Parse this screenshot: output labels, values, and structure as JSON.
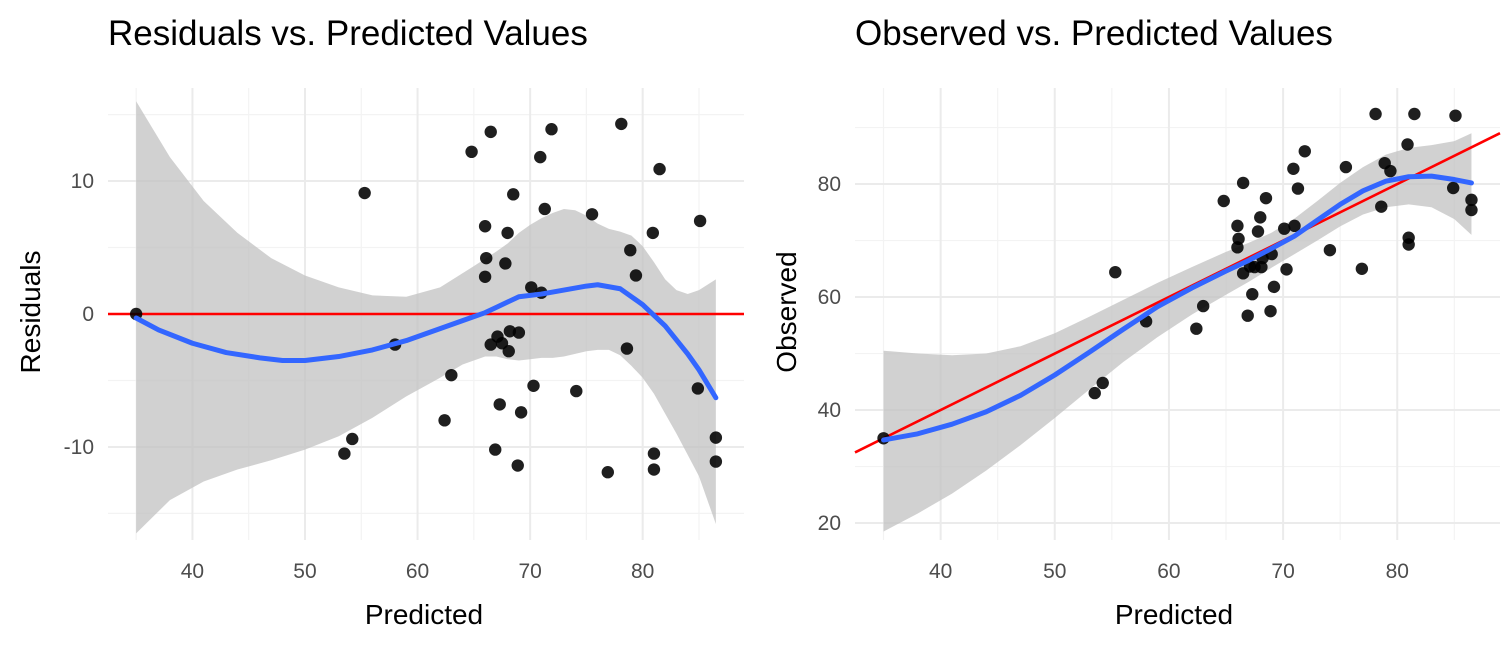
{
  "colors": {
    "points": "#000000",
    "smooth": "#3366FF",
    "band": "#bfbfbf",
    "reference": "#ff0000",
    "grid": "#ebebeb"
  },
  "chart_data": [
    {
      "type": "scatter",
      "title": "Residuals vs. Predicted Values",
      "xlabel": "Predicted",
      "ylabel": "Residuals",
      "xlim": [
        32.5,
        89
      ],
      "ylim": [
        -17,
        17
      ],
      "x_ticks": [
        40,
        50,
        60,
        70,
        80
      ],
      "y_ticks": [
        -10,
        0,
        10
      ],
      "x_tick_labels": [
        "40",
        "50",
        "60",
        "70",
        "80"
      ],
      "y_tick_labels": [
        "-10",
        "0",
        "10"
      ],
      "grid": true,
      "reference_line": {
        "type": "horizontal",
        "y": 0,
        "color": "#ff0000"
      },
      "points": [
        [
          35.0,
          0.0
        ],
        [
          53.5,
          -10.5
        ],
        [
          54.2,
          -9.4
        ],
        [
          55.3,
          9.1
        ],
        [
          58.0,
          -2.3
        ],
        [
          62.4,
          -8.0
        ],
        [
          63.0,
          -4.6
        ],
        [
          64.8,
          12.2
        ],
        [
          66.0,
          6.6
        ],
        [
          66.1,
          4.2
        ],
        [
          66.0,
          2.8
        ],
        [
          66.5,
          13.7
        ],
        [
          66.5,
          -2.3
        ],
        [
          66.9,
          -10.2
        ],
        [
          67.1,
          -1.7
        ],
        [
          67.3,
          -6.8
        ],
        [
          67.5,
          -2.2
        ],
        [
          67.8,
          3.8
        ],
        [
          68.0,
          6.1
        ],
        [
          68.1,
          -2.8
        ],
        [
          68.2,
          -1.3
        ],
        [
          68.5,
          9.0
        ],
        [
          68.9,
          -11.4
        ],
        [
          69.0,
          -1.4
        ],
        [
          69.2,
          -7.4
        ],
        [
          70.1,
          2.0
        ],
        [
          70.3,
          -5.4
        ],
        [
          70.9,
          11.8
        ],
        [
          71.0,
          1.6
        ],
        [
          71.3,
          7.9
        ],
        [
          71.9,
          13.9
        ],
        [
          74.1,
          -5.8
        ],
        [
          75.5,
          7.5
        ],
        [
          76.9,
          -11.9
        ],
        [
          78.1,
          14.3
        ],
        [
          78.6,
          -2.6
        ],
        [
          78.9,
          4.8
        ],
        [
          79.4,
          2.9
        ],
        [
          80.9,
          6.1
        ],
        [
          81.0,
          -10.5
        ],
        [
          81.0,
          -11.7
        ],
        [
          81.5,
          10.9
        ],
        [
          84.9,
          -5.6
        ],
        [
          85.1,
          7.0
        ],
        [
          86.5,
          -9.3
        ],
        [
          86.5,
          -11.1
        ]
      ],
      "smooth": [
        [
          35,
          -0.3
        ],
        [
          37,
          -1.2
        ],
        [
          40,
          -2.2
        ],
        [
          43,
          -2.9
        ],
        [
          46,
          -3.3
        ],
        [
          48,
          -3.5
        ],
        [
          50,
          -3.5
        ],
        [
          53,
          -3.2
        ],
        [
          56,
          -2.7
        ],
        [
          59,
          -2.0
        ],
        [
          62,
          -1.1
        ],
        [
          64,
          -0.5
        ],
        [
          66,
          0.1
        ],
        [
          67,
          0.5
        ],
        [
          68,
          0.9
        ],
        [
          69,
          1.3
        ],
        [
          71,
          1.5
        ],
        [
          73,
          1.8
        ],
        [
          75,
          2.1
        ],
        [
          76,
          2.2
        ],
        [
          78,
          1.9
        ],
        [
          80,
          0.7
        ],
        [
          82,
          -0.9
        ],
        [
          84,
          -3.0
        ],
        [
          85,
          -4.2
        ],
        [
          86.5,
          -6.3
        ]
      ],
      "band_upper": [
        [
          35,
          16.0
        ],
        [
          38,
          11.8
        ],
        [
          41,
          8.5
        ],
        [
          44,
          6.1
        ],
        [
          47,
          4.2
        ],
        [
          50,
          2.9
        ],
        [
          53,
          2.0
        ],
        [
          56,
          1.4
        ],
        [
          59,
          1.3
        ],
        [
          62,
          2.0
        ],
        [
          65,
          3.6
        ],
        [
          67,
          4.7
        ],
        [
          68,
          5.3
        ],
        [
          69,
          6.1
        ],
        [
          70,
          6.7
        ],
        [
          71,
          7.2
        ],
        [
          72,
          7.6
        ],
        [
          73,
          7.9
        ],
        [
          74,
          7.8
        ],
        [
          75,
          7.4
        ],
        [
          76,
          6.8
        ],
        [
          77,
          6.4
        ],
        [
          78,
          6.2
        ],
        [
          79,
          5.9
        ],
        [
          80,
          5.1
        ],
        [
          81,
          3.9
        ],
        [
          82,
          2.6
        ],
        [
          83,
          1.8
        ],
        [
          84,
          1.5
        ],
        [
          85,
          1.8
        ],
        [
          86.5,
          2.6
        ]
      ],
      "band_lower": [
        [
          35,
          -16.5
        ],
        [
          38,
          -14.0
        ],
        [
          41,
          -12.6
        ],
        [
          44,
          -11.7
        ],
        [
          47,
          -11.0
        ],
        [
          50,
          -10.2
        ],
        [
          53,
          -9.2
        ],
        [
          56,
          -7.8
        ],
        [
          59,
          -6.2
        ],
        [
          62,
          -4.8
        ],
        [
          64,
          -3.8
        ],
        [
          66,
          -3.2
        ],
        [
          67,
          -3.2
        ],
        [
          68,
          -3.4
        ],
        [
          69,
          -3.5
        ],
        [
          70,
          -3.4
        ],
        [
          71,
          -3.3
        ],
        [
          72,
          -3.3
        ],
        [
          73,
          -3.2
        ],
        [
          74,
          -3.0
        ],
        [
          75,
          -2.8
        ],
        [
          76,
          -2.7
        ],
        [
          77,
          -2.7
        ],
        [
          78,
          -3.1
        ],
        [
          79,
          -3.9
        ],
        [
          80,
          -4.8
        ],
        [
          81,
          -6.0
        ],
        [
          82,
          -7.5
        ],
        [
          83,
          -9.0
        ],
        [
          84,
          -10.6
        ],
        [
          85,
          -12.2
        ],
        [
          86.5,
          -15.8
        ]
      ]
    },
    {
      "type": "scatter",
      "title": "Observed vs. Predicted Values",
      "xlabel": "Predicted",
      "ylabel": "Observed",
      "xlim": [
        32.5,
        89
      ],
      "ylim": [
        17,
        97
      ],
      "x_ticks": [
        40,
        50,
        60,
        70,
        80
      ],
      "y_ticks": [
        20,
        40,
        60,
        80
      ],
      "x_tick_labels": [
        "40",
        "50",
        "60",
        "70",
        "80"
      ],
      "y_tick_labels": [
        "20",
        "40",
        "60",
        "80"
      ],
      "grid": true,
      "reference_line": {
        "type": "identity",
        "slope": 1,
        "intercept": 0,
        "color": "#ff0000"
      },
      "points": [
        [
          35.0,
          35.0
        ],
        [
          53.5,
          43.0
        ],
        [
          54.2,
          44.8
        ],
        [
          55.3,
          64.4
        ],
        [
          58.0,
          55.7
        ],
        [
          62.4,
          54.4
        ],
        [
          63.0,
          58.4
        ],
        [
          64.8,
          77.0
        ],
        [
          66.0,
          72.6
        ],
        [
          66.1,
          70.3
        ],
        [
          66.0,
          68.8
        ],
        [
          66.5,
          80.2
        ],
        [
          66.5,
          64.2
        ],
        [
          66.9,
          56.7
        ],
        [
          67.1,
          65.4
        ],
        [
          67.3,
          60.5
        ],
        [
          67.5,
          65.3
        ],
        [
          67.8,
          71.6
        ],
        [
          68.0,
          74.1
        ],
        [
          68.1,
          65.3
        ],
        [
          68.2,
          66.9
        ],
        [
          68.5,
          77.5
        ],
        [
          68.9,
          57.5
        ],
        [
          69.0,
          67.6
        ],
        [
          69.2,
          61.8
        ],
        [
          70.1,
          72.1
        ],
        [
          70.3,
          64.9
        ],
        [
          70.9,
          82.7
        ],
        [
          71.0,
          72.6
        ],
        [
          71.3,
          79.2
        ],
        [
          71.9,
          85.8
        ],
        [
          74.1,
          68.3
        ],
        [
          75.5,
          83.0
        ],
        [
          76.9,
          65.0
        ],
        [
          78.1,
          92.4
        ],
        [
          78.6,
          76.0
        ],
        [
          78.9,
          83.7
        ],
        [
          79.4,
          82.3
        ],
        [
          80.9,
          87.0
        ],
        [
          81.0,
          70.5
        ],
        [
          81.0,
          69.3
        ],
        [
          81.5,
          92.4
        ],
        [
          84.9,
          79.3
        ],
        [
          85.1,
          92.1
        ],
        [
          86.5,
          77.2
        ],
        [
          86.5,
          75.4
        ]
      ],
      "smooth": [
        [
          35,
          34.7
        ],
        [
          38,
          35.8
        ],
        [
          41,
          37.5
        ],
        [
          44,
          39.7
        ],
        [
          47,
          42.6
        ],
        [
          50,
          46.2
        ],
        [
          53,
          50.2
        ],
        [
          56,
          54.3
        ],
        [
          59,
          58.3
        ],
        [
          62,
          61.6
        ],
        [
          65,
          64.6
        ],
        [
          67,
          66.5
        ],
        [
          69,
          68.6
        ],
        [
          71,
          70.8
        ],
        [
          73,
          73.6
        ],
        [
          75,
          76.4
        ],
        [
          77,
          78.8
        ],
        [
          79,
          80.5
        ],
        [
          81,
          81.3
        ],
        [
          83,
          81.4
        ],
        [
          85,
          80.8
        ],
        [
          86.5,
          80.2
        ]
      ],
      "band_upper": [
        [
          35,
          50.5
        ],
        [
          38,
          50.0
        ],
        [
          41,
          49.7
        ],
        [
          44,
          50.0
        ],
        [
          47,
          51.3
        ],
        [
          50,
          53.6
        ],
        [
          53,
          56.5
        ],
        [
          56,
          59.5
        ],
        [
          59,
          62.5
        ],
        [
          62,
          65.3
        ],
        [
          65,
          68.0
        ],
        [
          67,
          69.6
        ],
        [
          69,
          71.4
        ],
        [
          71,
          73.9
        ],
        [
          73,
          77.0
        ],
        [
          75,
          80.2
        ],
        [
          77,
          83.0
        ],
        [
          79,
          85.2
        ],
        [
          81,
          86.4
        ],
        [
          83,
          86.9
        ],
        [
          85,
          87.6
        ],
        [
          86.5,
          89.0
        ]
      ],
      "band_lower": [
        [
          35,
          18.5
        ],
        [
          38,
          21.7
        ],
        [
          41,
          25.2
        ],
        [
          44,
          29.3
        ],
        [
          47,
          33.8
        ],
        [
          50,
          38.6
        ],
        [
          53,
          43.6
        ],
        [
          56,
          48.5
        ],
        [
          59,
          52.9
        ],
        [
          62,
          56.9
        ],
        [
          65,
          60.4
        ],
        [
          67,
          62.7
        ],
        [
          69,
          65.2
        ],
        [
          71,
          67.6
        ],
        [
          73,
          70.0
        ],
        [
          75,
          72.5
        ],
        [
          77,
          74.6
        ],
        [
          79,
          75.9
        ],
        [
          81,
          76.4
        ],
        [
          83,
          75.9
        ],
        [
          85,
          73.8
        ],
        [
          86.5,
          71.0
        ]
      ]
    }
  ]
}
